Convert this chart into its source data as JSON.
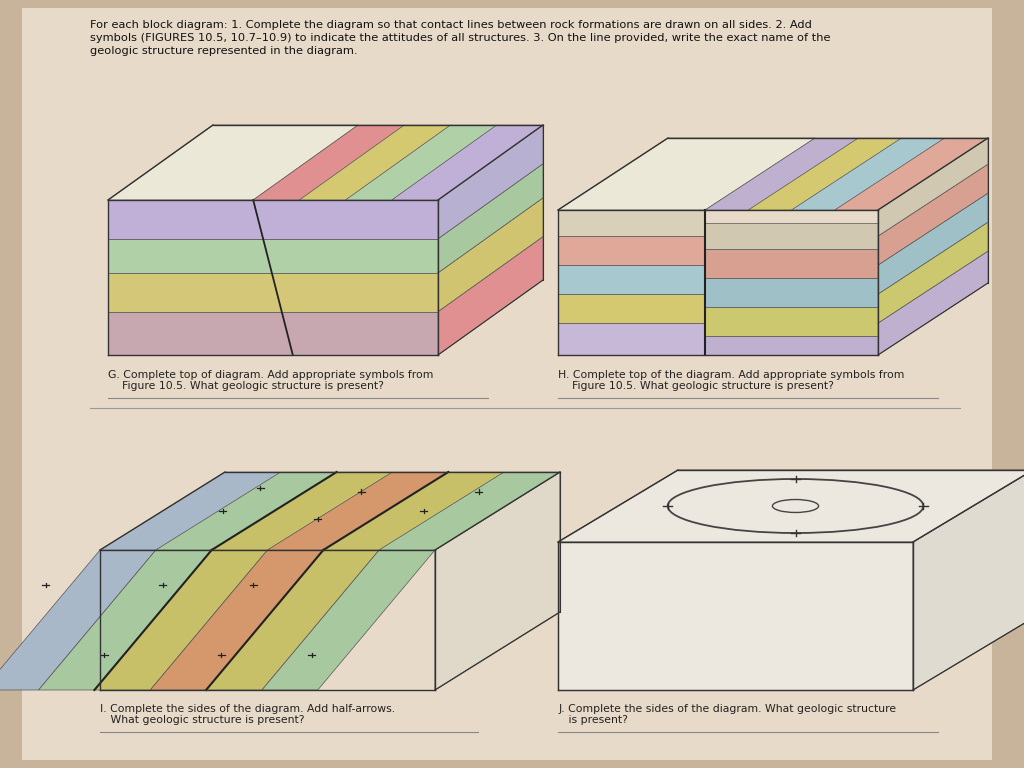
{
  "bg_color": "#c8b49a",
  "page_color": "#e8dac8",
  "title_line1": "For each block diagram: 1. Complete the diagram so that contact lines between rock formations are drawn on all sides. 2. Add",
  "title_line2": "symbols (FIGURES 10.5, 10.7–10.9) to indicate the attitudes of all structures. 3. On the line provided, write the exact name of the",
  "title_line3": "geologic structure represented in the diagram.",
  "G_label1": "G. Complete top of diagram. Add appropriate symbols from",
  "G_label2": "    Figure 10.5. What geologic structure is present?",
  "H_label1": "H. Complete top of the diagram. Add appropriate symbols from",
  "H_label2": "    Figure 10.5. What geologic structure is present?",
  "I_label1": "I. Complete the sides of the diagram. Add half-arrows.",
  "I_label2": "   What geologic structure is present?",
  "J_label1": "J. Complete the sides of the diagram. What geologic structure",
  "J_label2": "   is present?",
  "G_front_colors": [
    "#c8a8b0",
    "#d4c878",
    "#b0d0a8",
    "#c0b0d8"
  ],
  "G_right_colors": [
    "#e09090",
    "#d0c470",
    "#a8c8a0",
    "#b8b0d0"
  ],
  "G_top_left_color": "#ece8d8",
  "G_top_stripe_colors": [
    "#e09090",
    "#d4c870",
    "#b0d0a8",
    "#c0b0d8"
  ],
  "H_front_left_colors": [
    "#c8b8d8",
    "#d4c870",
    "#a8c8d0",
    "#e0a898",
    "#d8d0b8"
  ],
  "H_front_right_colors": [
    "#c0b0d0",
    "#ccc870",
    "#a0c0c8",
    "#d8a090",
    "#d0c8b0"
  ],
  "H_right_colors": [
    "#c0b0d0",
    "#ccc870",
    "#a0c0c8",
    "#d8a090",
    "#d0c8b0"
  ],
  "H_top_left_color": "#ece8d8",
  "H_top_stripe_colors": [
    "#c0b0d0",
    "#d4c870",
    "#a8c8d0",
    "#e0a898"
  ],
  "I_band_colors": [
    "#a8b8c8",
    "#a8c8a0",
    "#c8c068",
    "#d4986c",
    "#c8c068",
    "#a8c8a0"
  ],
  "I_top_color": "#e0d8c8",
  "J_face_color": "#ece8e0",
  "J_right_color": "#e0dbd0",
  "J_top_color": "#ece8e0"
}
